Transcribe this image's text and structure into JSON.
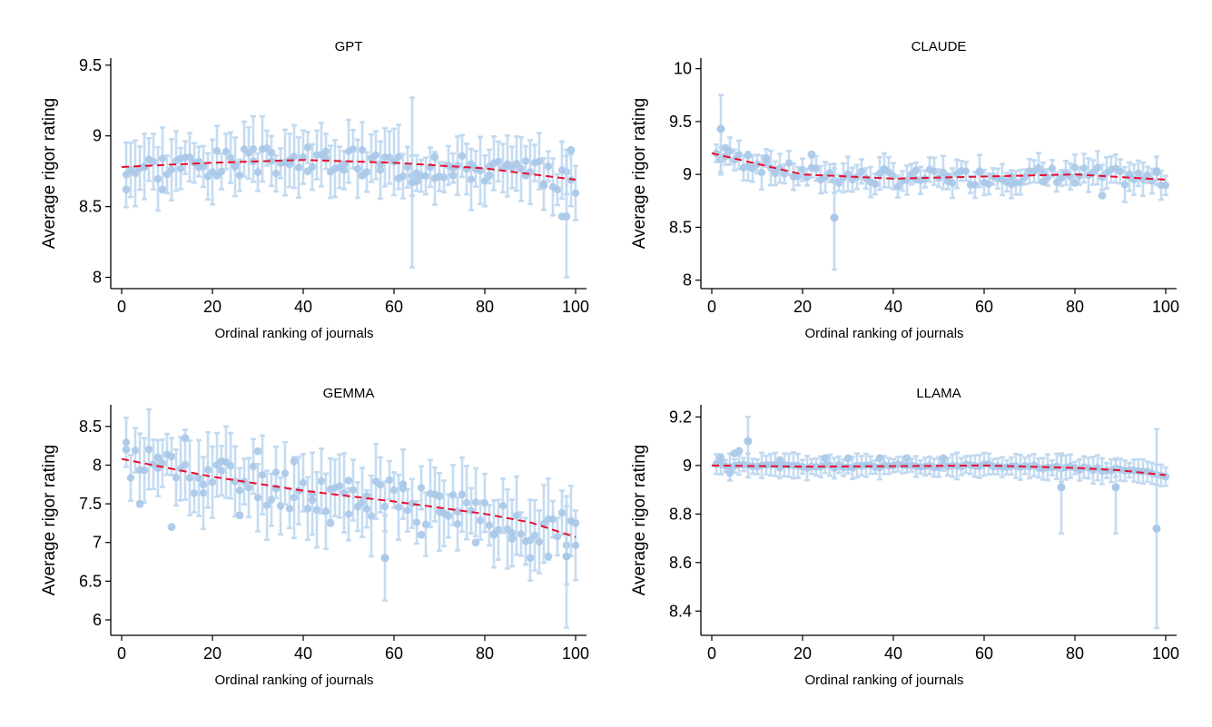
{
  "chart_data": [
    {
      "type": "scatter",
      "title": "GPT",
      "xlabel": "Ordinal ranking of journals",
      "ylabel": "Average rigor rating",
      "xlim": [
        0,
        100
      ],
      "ylim": [
        7.92,
        9.55
      ],
      "xticks": [
        "0",
        "20",
        "40",
        "60",
        "80",
        "100"
      ],
      "yticks": [
        "8",
        "8.5",
        "9",
        "9.5"
      ],
      "series": [
        {
          "base": 8.8,
          "spread": 0.1,
          "err": 0.17,
          "seed": 3,
          "x": [
            1,
            5,
            9,
            13,
            17,
            21,
            25,
            29,
            33,
            37,
            41,
            45,
            49,
            53,
            57,
            61,
            65,
            69,
            73,
            77,
            81,
            85,
            89,
            93,
            97,
            99
          ],
          "y": [
            8.62,
            8.78,
            8.62,
            8.84,
            8.78,
            8.72,
            8.8,
            8.82,
            8.88,
            8.8,
            8.75,
            8.84,
            8.8,
            8.72,
            8.8,
            8.7,
            8.68,
            8.85,
            8.72,
            8.8,
            8.72,
            8.8,
            8.72,
            8.65,
            8.43,
            8.9
          ]
        }
      ],
      "fit": [
        [
          0,
          8.78
        ],
        [
          20,
          8.81
        ],
        [
          40,
          8.83
        ],
        [
          60,
          8.81
        ],
        [
          80,
          8.77
        ],
        [
          100,
          8.69
        ]
      ],
      "outliers": [
        {
          "x": 64,
          "lo": 8.07,
          "hi": 9.27,
          "y": 8.67
        },
        {
          "x": 98,
          "lo": 8.0,
          "hi": 8.86,
          "y": 8.43
        }
      ]
    },
    {
      "type": "scatter",
      "title": "CLAUDE",
      "xlabel": "Ordinal ranking of journals",
      "ylabel": "Average rigor rating",
      "xlim": [
        0,
        100
      ],
      "ylim": [
        7.92,
        10.1
      ],
      "xticks": [
        "0",
        "20",
        "40",
        "60",
        "80",
        "100"
      ],
      "yticks": [
        "8",
        "8.5",
        "9",
        "9.5",
        "10"
      ],
      "series": [
        {
          "base": 9.0,
          "spread": 0.08,
          "err": 0.12,
          "seed": 7,
          "x": [
            2,
            3,
            8,
            12,
            22,
            27,
            38,
            45,
            52,
            59,
            66,
            73,
            80,
            86,
            92,
            98
          ],
          "y": [
            9.43,
            9.25,
            9.18,
            9.12,
            9.19,
            8.59,
            9.05,
            8.95,
            8.98,
            9.02,
            8.98,
            8.93,
            8.92,
            8.8,
            9.0,
            9.02
          ]
        }
      ],
      "fit": [
        [
          0,
          9.2
        ],
        [
          20,
          9.0
        ],
        [
          40,
          8.96
        ],
        [
          60,
          8.98
        ],
        [
          80,
          9.0
        ],
        [
          100,
          8.95
        ]
      ],
      "outliers": [
        {
          "x": 27,
          "lo": 8.1,
          "hi": 9.1,
          "y": 8.59
        },
        {
          "x": 2,
          "lo": 9.0,
          "hi": 9.75,
          "y": 9.43
        }
      ]
    },
    {
      "type": "scatter",
      "title": "GEMMA",
      "xlabel": "Ordinal ranking of journals",
      "ylabel": "Average rigor rating",
      "xlim": [
        0,
        100
      ],
      "ylim": [
        5.8,
        8.78
      ],
      "xticks": [
        "0",
        "20",
        "40",
        "60",
        "80",
        "100"
      ],
      "yticks": [
        "6",
        "6.5",
        "7",
        "7.5",
        "8",
        "8.5"
      ],
      "series": [
        {
          "base": 0,
          "spread": 0.28,
          "err": 0.38,
          "seed": 11,
          "x": [
            1,
            4,
            8,
            11,
            14,
            18,
            22,
            26,
            30,
            34,
            38,
            42,
            46,
            50,
            54,
            58,
            62,
            66,
            70,
            74,
            78,
            82,
            86,
            90,
            94,
            98,
            100
          ],
          "y": [
            8.2,
            7.5,
            8.1,
            7.2,
            8.35,
            7.75,
            8.05,
            7.35,
            8.18,
            7.7,
            8.05,
            7.55,
            7.25,
            7.8,
            7.6,
            6.8,
            7.7,
            7.1,
            7.6,
            7.4,
            7.0,
            7.1,
            7.05,
            6.8,
            6.82,
            6.82,
            7.25
          ]
        }
      ],
      "fit": [
        [
          0,
          8.08
        ],
        [
          20,
          7.85
        ],
        [
          40,
          7.67
        ],
        [
          60,
          7.53
        ],
        [
          80,
          7.37
        ],
        [
          90,
          7.26
        ],
        [
          100,
          7.07
        ]
      ],
      "outliers": [
        {
          "x": 98,
          "lo": 5.9,
          "hi": 7.6,
          "y": 6.82
        },
        {
          "x": 58,
          "lo": 6.25,
          "hi": 7.35,
          "y": 6.8
        }
      ]
    },
    {
      "type": "scatter",
      "title": "LLAMA",
      "xlabel": "Ordinal ranking of journals",
      "ylabel": "Average rigor rating",
      "xlim": [
        0,
        100
      ],
      "ylim": [
        8.3,
        9.25
      ],
      "xticks": [
        "0",
        "20",
        "40",
        "60",
        "80",
        "100"
      ],
      "yticks": [
        "8.4",
        "8.6",
        "8.8",
        "9",
        "9.2"
      ],
      "series": [
        {
          "base": 9.0,
          "spread": 0.008,
          "err": 0.04,
          "seed": 5,
          "x": [
            2,
            4,
            5,
            6,
            8,
            15,
            25,
            30,
            37,
            43,
            51,
            77,
            89,
            98
          ],
          "y": [
            9.03,
            8.97,
            9.05,
            9.06,
            9.1,
            9.02,
            9.03,
            9.03,
            9.03,
            9.03,
            9.03,
            8.91,
            8.91,
            8.74
          ]
        }
      ],
      "fit": [
        [
          0,
          9.0
        ],
        [
          20,
          8.995
        ],
        [
          40,
          8.997
        ],
        [
          60,
          9.0
        ],
        [
          80,
          8.99
        ],
        [
          90,
          8.98
        ],
        [
          100,
          8.96
        ]
      ],
      "outliers": [
        {
          "x": 77,
          "lo": 8.72,
          "hi": 9.05,
          "y": 8.91
        },
        {
          "x": 89,
          "lo": 8.72,
          "hi": 9.03,
          "y": 8.91
        },
        {
          "x": 98,
          "lo": 8.33,
          "hi": 9.15,
          "y": 8.74
        },
        {
          "x": 8,
          "lo": 9.0,
          "hi": 9.2,
          "y": 9.1
        }
      ]
    }
  ]
}
